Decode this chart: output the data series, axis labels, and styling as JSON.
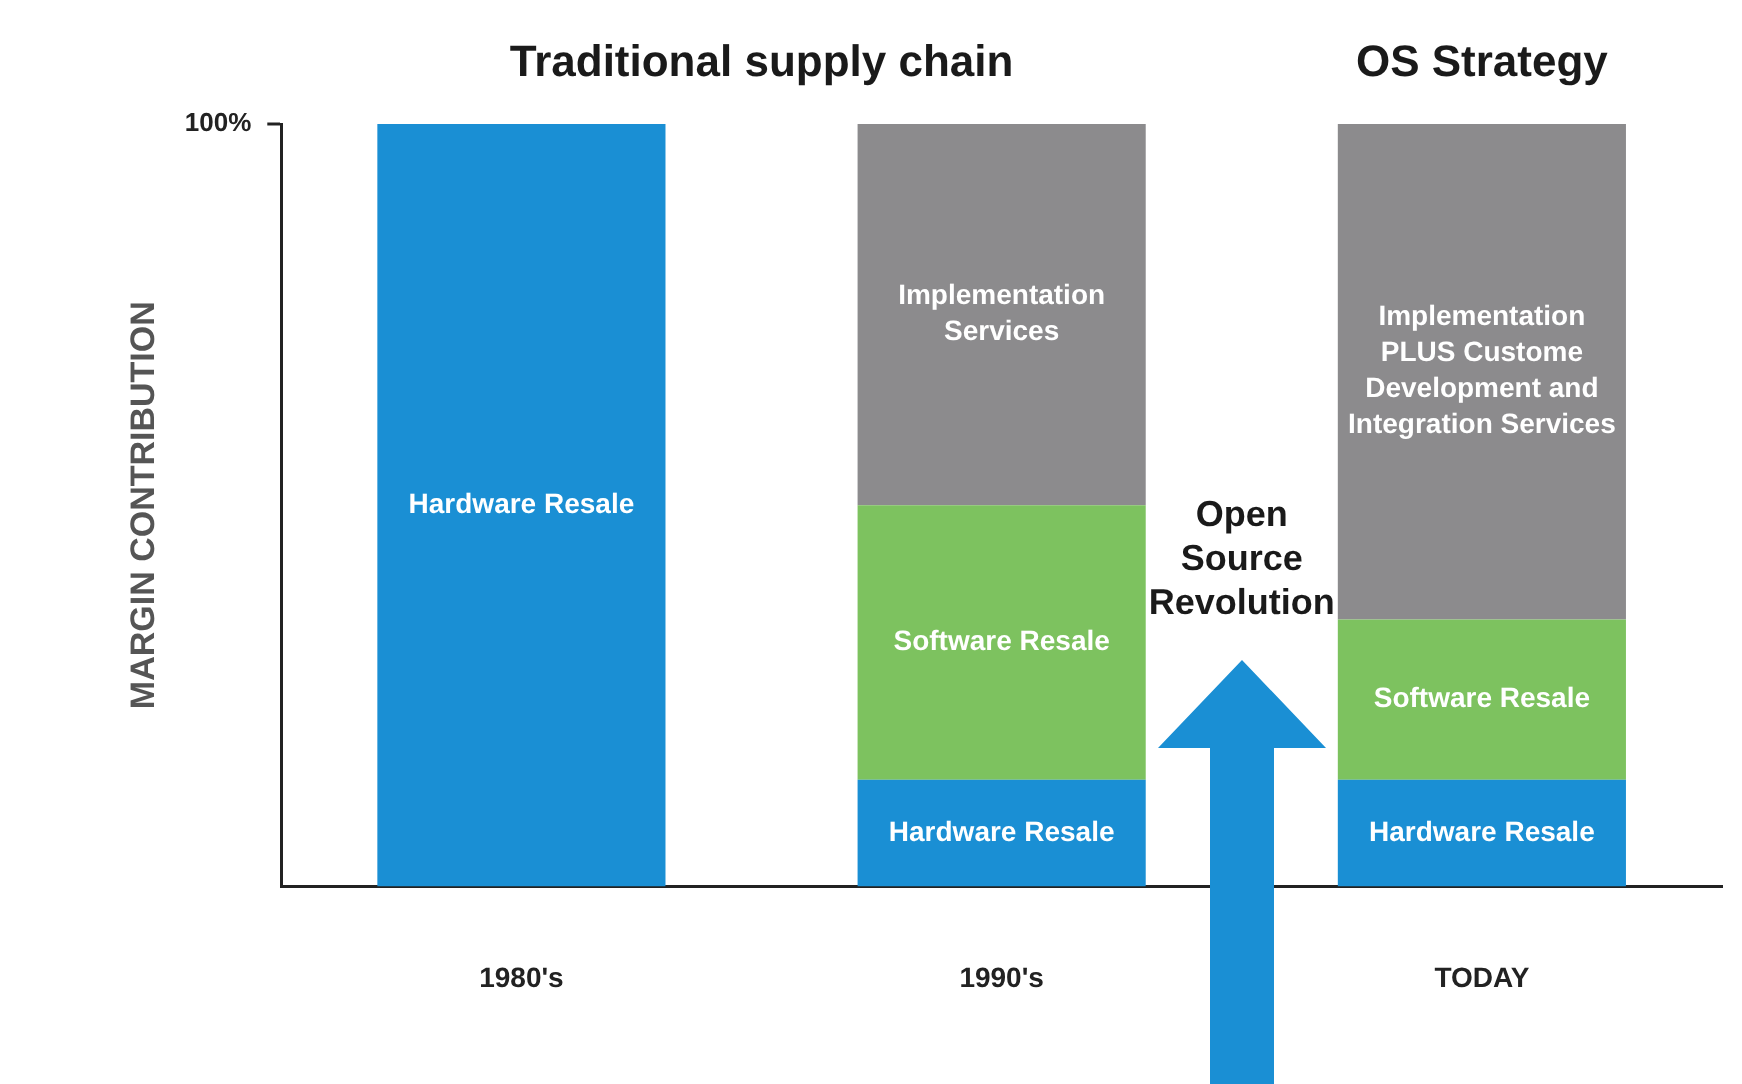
{
  "chart_data": {
    "type": "bar",
    "title": "Traditional supply chain",
    "ylabel": "MARGIN CONTRIBUTION",
    "annotations": [
      "OS Strategy",
      "Open Source Revolution"
    ],
    "categories": [
      "1980's",
      "1990's",
      "TODAY"
    ],
    "stacked": true,
    "ylim": [
      0,
      100
    ],
    "yticks": [
      {
        "value": 100,
        "label": "100%"
      }
    ],
    "series": [
      {
        "color": "#1a8fd4",
        "values": [
          100,
          14,
          14
        ],
        "value_labels": [
          "Hardware Resale",
          "Hardware Resale",
          "Hardware Resale"
        ]
      },
      {
        "color": "#7dc25f",
        "values": [
          0,
          36,
          21
        ],
        "value_labels": [
          null,
          "Software Resale",
          "Software Resale"
        ]
      },
      {
        "color": "#8c8b8d",
        "values": [
          0,
          50,
          65
        ],
        "value_labels": [
          null,
          "Implementation Services",
          "Implementation PLUS Custome Development and Integration Services"
        ]
      }
    ]
  }
}
